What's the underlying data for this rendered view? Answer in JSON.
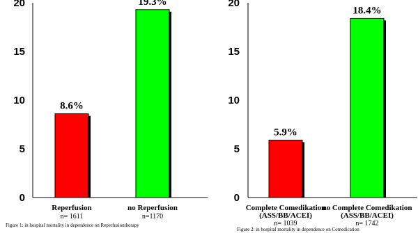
{
  "chart_data": [
    {
      "type": "bar",
      "ylim": [
        0,
        20
      ],
      "yticks": [
        "0",
        "5",
        "10",
        "15",
        "20"
      ],
      "categories": [
        "Reperfusion",
        "no Reperfusion"
      ],
      "n_labels": [
        "n= 1611",
        "n=1170"
      ],
      "values": [
        8.6,
        19.3
      ],
      "value_labels": [
        "8.6%",
        "19.3%"
      ],
      "colors": [
        "#ff0000",
        "#00ff00"
      ],
      "caption": "Figure 1: in hospital mortality in dependence on Reperfusiontherapy"
    },
    {
      "type": "bar",
      "ylim": [
        0,
        20
      ],
      "yticks": [
        "0",
        "5",
        "10",
        "15",
        "20"
      ],
      "categories": [
        "Complete Comedikation",
        "no Complete Comedikation"
      ],
      "subcategories": [
        "(ASS/BB/ACEI)",
        "(ASS/BB/ACEI)"
      ],
      "n_labels": [
        "n= 1039",
        "n= 1742"
      ],
      "values": [
        5.9,
        18.4
      ],
      "value_labels": [
        "5.9%",
        "18.4%"
      ],
      "colors": [
        "#ff0000",
        "#00ff00"
      ],
      "caption": "Figure 2: in hospital mortality in dependence on Comedication"
    }
  ]
}
